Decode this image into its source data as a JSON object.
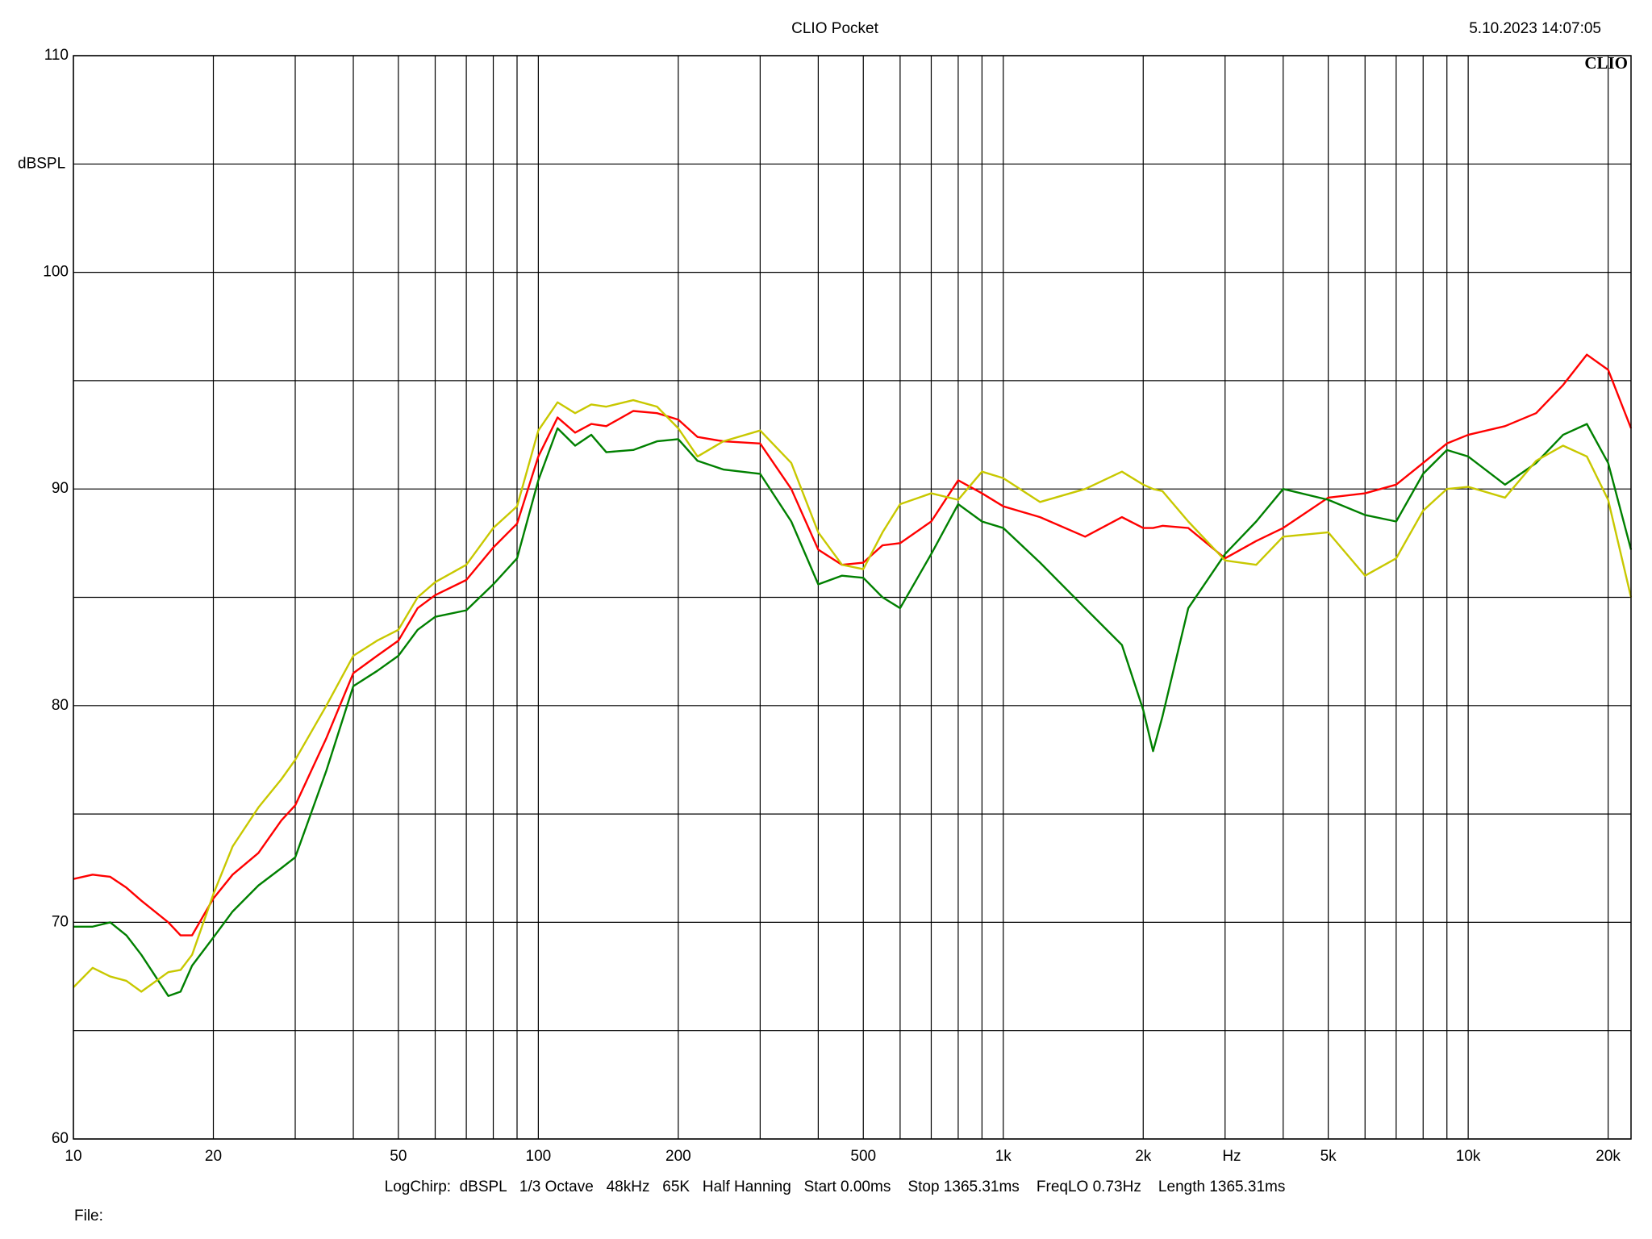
{
  "chart_data": {
    "type": "line",
    "title": "CLIO Pocket",
    "timestamp": "5.10.2023 14:07:05",
    "logo": "CLIO",
    "ylabel": "dBSPL",
    "xlabel": "Hz",
    "footer": "LogChirp:  dBSPL   1/3 Octave   48kHz   65K   Half Hanning   Start 0.00ms    Stop 1365.31ms    FreqLO 0.73Hz    Length 1365.31ms",
    "file_label": "File:",
    "xscale": "log",
    "grid": true,
    "xlim": [
      10,
      22400
    ],
    "ylim": [
      60,
      110
    ],
    "xticks": [
      10,
      20,
      50,
      100,
      200,
      500,
      {
        "value": 1000,
        "label": "1k"
      },
      {
        "value": 2000,
        "label": "2k"
      },
      {
        "value": 5000,
        "label": "5k"
      },
      {
        "value": 10000,
        "label": "10k"
      },
      {
        "value": 20000,
        "label": "20k"
      }
    ],
    "xminor": [
      30,
      40,
      60,
      70,
      80,
      90,
      300,
      400,
      600,
      700,
      800,
      900,
      3000,
      4000,
      6000,
      7000,
      8000,
      9000
    ],
    "yticks": [
      60,
      70,
      80,
      90,
      100,
      110
    ],
    "yminor": [
      65,
      75,
      85,
      95,
      105
    ],
    "x": [
      10,
      11,
      12,
      13,
      14,
      16,
      17,
      18,
      20,
      22,
      25,
      28,
      30,
      35,
      40,
      45,
      50,
      55,
      60,
      70,
      80,
      90,
      100,
      110,
      120,
      130,
      140,
      160,
      180,
      200,
      220,
      250,
      300,
      350,
      400,
      450,
      500,
      550,
      600,
      700,
      800,
      900,
      1000,
      1200,
      1500,
      1800,
      2000,
      2100,
      2200,
      2500,
      3000,
      3500,
      4000,
      5000,
      6000,
      7000,
      8000,
      9000,
      10000,
      12000,
      14000,
      16000,
      18000,
      20000,
      22400
    ],
    "series": [
      {
        "color": "#ff0000",
        "values": [
          72.0,
          72.2,
          72.1,
          71.6,
          71.0,
          70.0,
          69.4,
          69.4,
          71.1,
          72.2,
          73.2,
          74.7,
          75.4,
          78.5,
          81.5,
          82.3,
          83.0,
          84.5,
          85.1,
          85.8,
          87.3,
          88.4,
          91.5,
          93.3,
          92.6,
          93.0,
          92.9,
          93.6,
          93.5,
          93.2,
          92.4,
          92.2,
          92.1,
          90.0,
          87.2,
          86.5,
          86.6,
          87.4,
          87.5,
          88.5,
          90.4,
          89.8,
          89.2,
          88.7,
          87.8,
          88.7,
          88.2,
          88.2,
          88.3,
          88.2,
          86.8,
          87.6,
          88.2,
          89.6,
          89.8,
          90.2,
          91.2,
          92.1,
          92.5,
          92.9,
          93.5,
          94.8,
          96.2,
          95.5,
          92.8
        ]
      },
      {
        "color": "#008000",
        "values": [
          69.8,
          69.8,
          70.0,
          69.4,
          68.5,
          66.6,
          66.8,
          68.0,
          69.3,
          70.5,
          71.7,
          72.5,
          73.0,
          77.0,
          80.9,
          81.6,
          82.3,
          83.5,
          84.1,
          84.4,
          85.6,
          86.8,
          90.4,
          92.8,
          92.0,
          92.5,
          91.7,
          91.8,
          92.2,
          92.3,
          91.3,
          90.9,
          90.7,
          88.5,
          85.6,
          86.0,
          85.9,
          85.0,
          84.5,
          87.0,
          89.3,
          88.5,
          88.2,
          86.6,
          84.5,
          82.8,
          79.8,
          77.9,
          79.5,
          84.5,
          87.0,
          88.5,
          90.0,
          89.5,
          88.8,
          88.5,
          90.7,
          91.8,
          91.5,
          90.2,
          91.2,
          92.5,
          93.0,
          91.2,
          87.2
        ]
      },
      {
        "color": "#c8c800",
        "values": [
          67.0,
          67.9,
          67.5,
          67.3,
          66.8,
          67.7,
          67.8,
          68.5,
          71.3,
          73.5,
          75.3,
          76.6,
          77.5,
          80.0,
          82.3,
          83.0,
          83.5,
          85.0,
          85.7,
          86.5,
          88.2,
          89.2,
          92.7,
          94.0,
          93.5,
          93.9,
          93.8,
          94.1,
          93.8,
          92.8,
          91.5,
          92.2,
          92.7,
          91.2,
          88.0,
          86.5,
          86.3,
          88.0,
          89.3,
          89.8,
          89.5,
          90.8,
          90.5,
          89.4,
          90.0,
          90.8,
          90.2,
          90.0,
          89.9,
          88.5,
          86.7,
          86.5,
          87.8,
          88.0,
          86.0,
          86.8,
          89.0,
          90.0,
          90.1,
          89.6,
          91.3,
          92.0,
          91.5,
          89.5,
          85.0
        ]
      }
    ]
  }
}
